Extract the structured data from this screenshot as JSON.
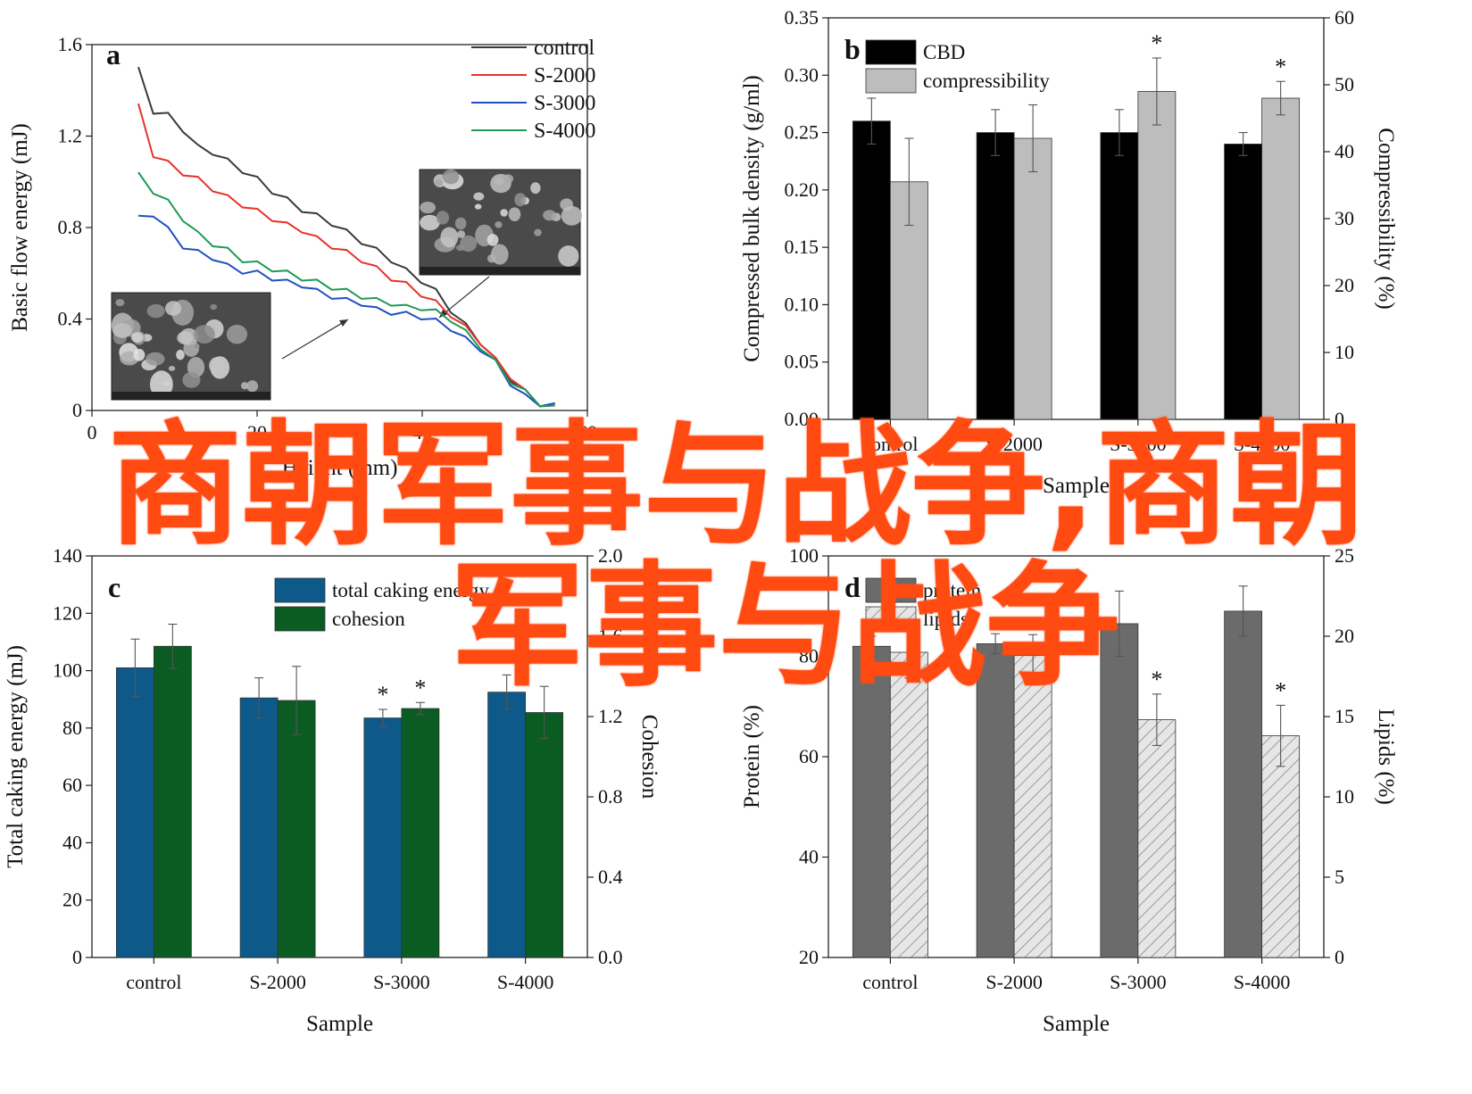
{
  "overlay": {
    "line1": "商朝军事与战争,商朝",
    "line2": "军事与战争"
  },
  "chart_data": [
    {
      "panel": "a",
      "type": "line",
      "xlabel": "Height (mm)",
      "ylabel": "Basic flow energy (mJ)",
      "xlim": [
        0,
        60
      ],
      "ylim": [
        0,
        1.6
      ],
      "xticks": [
        "0",
        "20",
        "40",
        "60"
      ],
      "yticks": [
        "0",
        "0.4",
        "0.8",
        "1.2",
        "1.6"
      ],
      "legend_position": "top-right",
      "series": [
        {
          "name": "control",
          "color": "#3a3a3a",
          "x": [
            0,
            2,
            4,
            6,
            8,
            10,
            12,
            14,
            16,
            18,
            20,
            22,
            24,
            26,
            28,
            30,
            32,
            34,
            36,
            38,
            40,
            42,
            44,
            46,
            48,
            50,
            52,
            54,
            56
          ],
          "y": [
            1.49,
            1.31,
            1.29,
            1.23,
            1.15,
            1.13,
            1.09,
            1.05,
            1.01,
            0.96,
            0.92,
            0.88,
            0.85,
            0.82,
            0.78,
            0.74,
            0.7,
            0.66,
            0.61,
            0.57,
            0.52,
            0.44,
            0.37,
            0.3,
            0.22,
            0.14,
            0.08,
            0.03,
            0.02
          ]
        },
        {
          "name": "S-2000",
          "color": "#e8322a",
          "x": [
            0,
            2,
            4,
            6,
            8,
            10,
            12,
            14,
            16,
            18,
            20,
            22,
            24,
            26,
            28,
            30,
            32,
            34,
            36,
            38,
            40,
            42,
            44,
            46,
            48,
            50,
            52,
            54,
            56
          ],
          "y": [
            1.33,
            1.12,
            1.08,
            1.04,
            1.01,
            0.97,
            0.93,
            0.9,
            0.87,
            0.84,
            0.81,
            0.79,
            0.75,
            0.72,
            0.69,
            0.66,
            0.62,
            0.58,
            0.55,
            0.51,
            0.47,
            0.42,
            0.36,
            0.3,
            0.22,
            0.15,
            0.08,
            0.03,
            0.01
          ]
        },
        {
          "name": "S-3000",
          "color": "#1f4fc2",
          "x": [
            0,
            2,
            4,
            6,
            8,
            10,
            12,
            14,
            16,
            18,
            20,
            22,
            24,
            26,
            28,
            30,
            32,
            34,
            36,
            38,
            40,
            42,
            44,
            46,
            48,
            50,
            52,
            54,
            56
          ],
          "y": [
            0.84,
            0.86,
            0.79,
            0.72,
            0.69,
            0.67,
            0.63,
            0.61,
            0.6,
            0.58,
            0.56,
            0.55,
            0.52,
            0.5,
            0.48,
            0.47,
            0.44,
            0.43,
            0.42,
            0.41,
            0.39,
            0.36,
            0.31,
            0.27,
            0.21,
            0.12,
            0.06,
            0.03,
            0.02
          ]
        },
        {
          "name": "S-4000",
          "color": "#1e9a55",
          "x": [
            0,
            2,
            4,
            6,
            8,
            10,
            12,
            14,
            16,
            18,
            20,
            22,
            24,
            26,
            28,
            30,
            32,
            34,
            36,
            38,
            40,
            42,
            44,
            46,
            48,
            50,
            52,
            54,
            56
          ],
          "y": [
            1.03,
            0.96,
            0.91,
            0.84,
            0.77,
            0.73,
            0.7,
            0.66,
            0.64,
            0.62,
            0.6,
            0.58,
            0.56,
            0.54,
            0.52,
            0.5,
            0.48,
            0.47,
            0.45,
            0.45,
            0.43,
            0.4,
            0.34,
            0.28,
            0.21,
            0.13,
            0.08,
            0.03,
            0.01
          ]
        }
      ],
      "insets": [
        "SEM micrograph",
        "SEM micrograph"
      ]
    },
    {
      "panel": "b",
      "type": "bar",
      "xlabel": "Sample",
      "ylabel": "Compressed bulk density (g/ml)",
      "y2label": "Compressibility (%)",
      "categories": [
        "control",
        "S-2000",
        "S-3000",
        "S-4000"
      ],
      "ylim": [
        0,
        0.35
      ],
      "y2lim": [
        0,
        60
      ],
      "yticks": [
        "0.00",
        "0.05",
        "0.10",
        "0.15",
        "0.20",
        "0.25",
        "0.30",
        "0.35"
      ],
      "y2ticks": [
        "0",
        "10",
        "20",
        "30",
        "40",
        "50",
        "60"
      ],
      "legend_position": "top-left",
      "series": [
        {
          "name": "CBD",
          "axis": "left",
          "color": "#000000",
          "values": [
            0.26,
            0.25,
            0.25,
            0.24
          ],
          "errors": [
            0.02,
            0.02,
            0.02,
            0.01
          ]
        },
        {
          "name": "compressibility",
          "axis": "right",
          "color": "#bdbdbd",
          "values": [
            35.5,
            42.0,
            49.0,
            48.0
          ],
          "errors": [
            6.5,
            5.0,
            5.0,
            2.5
          ]
        }
      ],
      "significance": [
        {
          "series": "compressibility",
          "category": "S-3000",
          "mark": "*"
        },
        {
          "series": "compressibility",
          "category": "S-4000",
          "mark": "*"
        }
      ]
    },
    {
      "panel": "c",
      "type": "bar",
      "xlabel": "Sample",
      "ylabel": "Total caking energy (mJ)",
      "y2label": "Cohesion",
      "categories": [
        "control",
        "S-2000",
        "S-3000",
        "S-4000"
      ],
      "ylim": [
        0,
        140
      ],
      "y2lim": [
        0,
        2.0
      ],
      "yticks": [
        "0",
        "20",
        "40",
        "60",
        "80",
        "100",
        "120",
        "140"
      ],
      "y2ticks": [
        "0.0",
        "0.4",
        "0.8",
        "1.2",
        "1.6",
        "2.0"
      ],
      "legend_position": "top-center",
      "series": [
        {
          "name": "total caking energy",
          "axis": "left",
          "color": "#0d5a8a",
          "values": [
            101,
            90.5,
            83.5,
            92.5
          ],
          "errors": [
            10,
            7,
            3,
            6
          ]
        },
        {
          "name": "cohesion",
          "axis": "right",
          "color": "#0b5c23",
          "values": [
            1.55,
            1.28,
            1.24,
            1.22
          ],
          "errors": [
            0.11,
            0.17,
            0.03,
            0.13
          ]
        }
      ],
      "significance": [
        {
          "series": "total caking energy",
          "category": "S-3000",
          "mark": "*"
        },
        {
          "series": "cohesion",
          "category": "S-3000",
          "mark": "*"
        }
      ]
    },
    {
      "panel": "d",
      "type": "bar",
      "xlabel": "Sample",
      "ylabel": "Protein (%)",
      "y2label": "Lipids (%)",
      "categories": [
        "control",
        "S-2000",
        "S-3000",
        "S-4000"
      ],
      "ylim": [
        20,
        100
      ],
      "y2lim": [
        0,
        25
      ],
      "yticks": [
        "20",
        "40",
        "60",
        "80",
        "100"
      ],
      "y2ticks": [
        "0",
        "5",
        "10",
        "15",
        "20",
        "25"
      ],
      "legend_position": "top-left",
      "series": [
        {
          "name": "protein",
          "axis": "left",
          "color": "#6b6b6b",
          "values": [
            82,
            82.5,
            86.5,
            89
          ],
          "errors": [
            2,
            2,
            6.5,
            5
          ]
        },
        {
          "name": "lipids",
          "axis": "right",
          "color": "#d9d9d9",
          "hatched": true,
          "values": [
            19.0,
            18.8,
            14.8,
            13.8
          ],
          "errors": [
            1.6,
            1.3,
            1.6,
            1.9
          ]
        }
      ],
      "significance": [
        {
          "series": "lipids",
          "category": "S-3000",
          "mark": "*"
        },
        {
          "series": "lipids",
          "category": "S-4000",
          "mark": "*"
        }
      ]
    }
  ]
}
